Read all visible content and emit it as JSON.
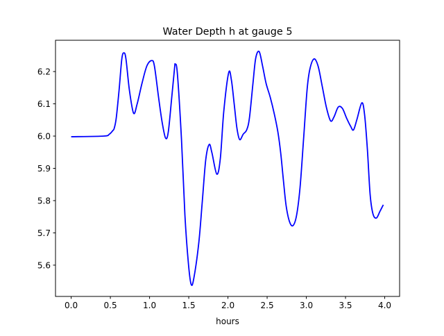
{
  "chart_data": {
    "type": "line",
    "title": "Water Depth h at gauge 5",
    "xlabel": "hours",
    "ylabel": "",
    "xlim": [
      -0.2,
      4.19
    ],
    "ylim": [
      5.503,
      6.297
    ],
    "xticks": [
      0.0,
      0.5,
      1.0,
      1.5,
      2.0,
      2.5,
      3.0,
      3.5,
      4.0
    ],
    "xtick_labels": [
      "0.0",
      "0.5",
      "1.0",
      "1.5",
      "2.0",
      "2.5",
      "3.0",
      "3.5",
      "4.0"
    ],
    "yticks": [
      5.6,
      5.7,
      5.8,
      5.9,
      6.0,
      6.1,
      6.2
    ],
    "ytick_labels": [
      "5.6",
      "5.7",
      "5.8",
      "5.9",
      "6.0",
      "6.1",
      "6.2"
    ],
    "grid": false,
    "series": [
      {
        "name": "h",
        "color": "#0000ff",
        "x": [
          0,
          0.416,
          0.487,
          0.531,
          0.549,
          0.575,
          0.611,
          0.646,
          0.673,
          0.699,
          0.743,
          0.796,
          0.841,
          0.903,
          0.965,
          1.027,
          1.062,
          1.115,
          1.159,
          1.204,
          1.239,
          1.283,
          1.319,
          1.327,
          1.354,
          1.407,
          1.451,
          1.496,
          1.531,
          1.566,
          1.628,
          1.673,
          1.717,
          1.761,
          1.796,
          1.858,
          1.903,
          1.947,
          2.009,
          2.044,
          2.08,
          2.115,
          2.15,
          2.195,
          2.239,
          2.274,
          2.319,
          2.354,
          2.398,
          2.442,
          2.487,
          2.54,
          2.593,
          2.637,
          2.673,
          2.708,
          2.743,
          2.788,
          2.832,
          2.876,
          2.92,
          2.965,
          3.009,
          3.044,
          3.097,
          3.15,
          3.204,
          3.257,
          3.31,
          3.354,
          3.407,
          3.46,
          3.513,
          3.566,
          3.602,
          3.646,
          3.708,
          3.743,
          3.779,
          3.814,
          3.85,
          3.894,
          3.938,
          3.982
        ],
        "y": [
          5.998,
          6.0,
          6.006,
          6.017,
          6.024,
          6.056,
          6.142,
          6.239,
          6.258,
          6.239,
          6.142,
          6.071,
          6.099,
          6.163,
          6.217,
          6.234,
          6.217,
          6.12,
          6.045,
          5.994,
          6.013,
          6.12,
          6.211,
          6.222,
          6.196,
          5.991,
          5.755,
          5.604,
          5.54,
          5.561,
          5.669,
          5.798,
          5.927,
          5.974,
          5.948,
          5.882,
          5.931,
          6.077,
          6.196,
          6.174,
          6.099,
          6.024,
          5.989,
          6.006,
          6.019,
          6.056,
          6.163,
          6.241,
          6.262,
          6.217,
          6.163,
          6.12,
          6.067,
          6.013,
          5.948,
          5.862,
          5.783,
          5.733,
          5.723,
          5.755,
          5.841,
          5.991,
          6.142,
          6.206,
          6.239,
          6.217,
          6.153,
          6.088,
          6.047,
          6.06,
          6.09,
          6.086,
          6.056,
          6.03,
          6.019,
          6.052,
          6.103,
          6.067,
          5.959,
          5.819,
          5.759,
          5.746,
          5.766,
          5.787
        ]
      }
    ]
  }
}
